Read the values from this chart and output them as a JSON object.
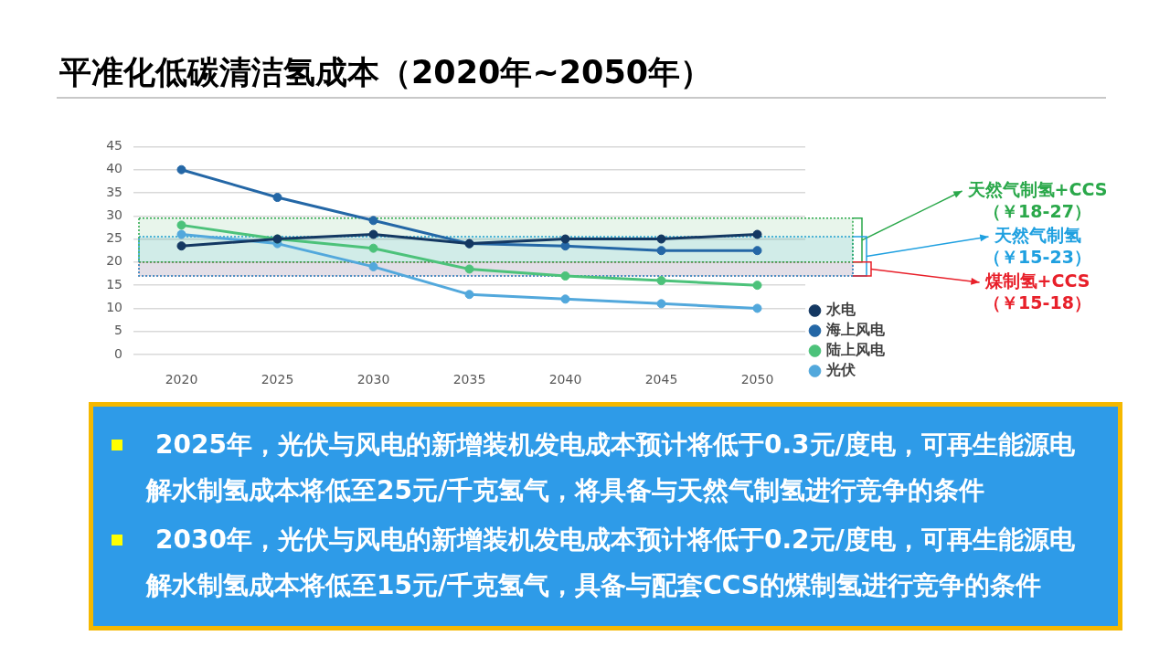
{
  "chart_data": [
    {
      "type": "line",
      "title": "平准化低碳清洁氢成本（2020年~2050年）",
      "categories": [
        "2020",
        "2025",
        "2030",
        "2035",
        "2040",
        "2045",
        "2050"
      ],
      "series": [
        {
          "name": "水电",
          "color": "#143862",
          "values": [
            23.5,
            25,
            26,
            24,
            25,
            25,
            26
          ]
        },
        {
          "name": "海上风电",
          "color": "#2467a6",
          "values": [
            40,
            34,
            29,
            24,
            23.5,
            22.5,
            22.5
          ]
        },
        {
          "name": "陆上风电",
          "color": "#4cc27a",
          "values": [
            28,
            25,
            23,
            18.5,
            17,
            16,
            15
          ]
        },
        {
          "name": "光伏",
          "color": "#52a8dc",
          "values": [
            26,
            24,
            19,
            13,
            12,
            11,
            10
          ]
        }
      ],
      "ylim": [
        0,
        45
      ],
      "yticks": [
        0,
        5,
        10,
        15,
        20,
        25,
        30,
        35,
        40,
        45
      ],
      "grid": "y",
      "legend": "bottom right",
      "marker": "circle",
      "bands": [
        {
          "axis": "y",
          "from": 20,
          "to": 29.5,
          "label": "天然气制氢+CCS（￥18-27）",
          "color": "#2aa84a"
        },
        {
          "axis": "y",
          "from": 17,
          "to": 25.5,
          "label": "天然气制氢（￥15-23）",
          "color": "#1fa0e0"
        },
        {
          "axis": "y",
          "from": 17,
          "to": 20,
          "label": "煤制氢+CCS（￥15-18）",
          "color": "#e8202a"
        }
      ]
    },
    {
      "type": "other",
      "annotations": [
        "2025年，光伏与风电的新增装机发电成本预计将低于0.3元/度电，可再生能源电解水制氢成本将低至25元/千克氢气，将具备与天然气制氢进行竞争的条件",
        "2030年，光伏与风电的新增装机发电成本预计将低于0.2元/度电，可再生能源电解水制氢成本将低至15元/千克氢气，具备与配套CCS的煤制氢进行竞争的条件"
      ]
    }
  ]
}
